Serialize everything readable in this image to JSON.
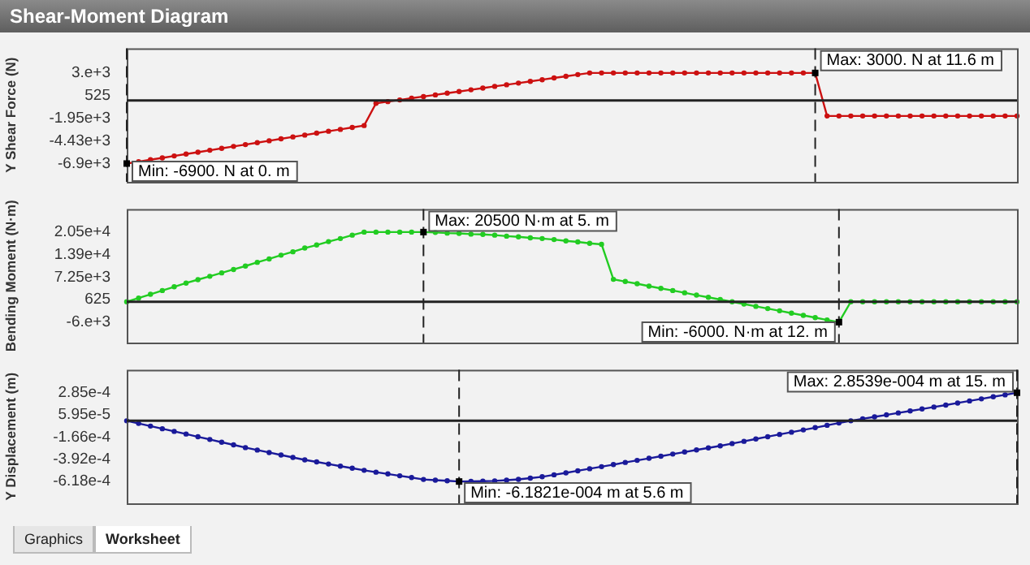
{
  "chart_data": [
    {
      "type": "line",
      "title": "Shear-Moment Diagram",
      "ylabel": "Y Shear Force (N)",
      "marker": "circle",
      "tick_labels": "y",
      "ylim": [
        -8900,
        5700
      ],
      "yticks": [
        {
          "value": -6900,
          "label": "-6.9e+3"
        },
        {
          "value": -4425,
          "label": "-4.43e+3"
        },
        {
          "value": -1950,
          "label": "-1.95e+3"
        },
        525,
        {
          "value": 3000,
          "label": "3.e+3"
        }
      ],
      "categories": [
        null,
        null,
        null,
        null,
        null,
        null,
        null,
        null,
        null,
        null,
        null,
        null,
        null,
        null,
        null,
        null,
        null,
        null,
        null,
        null,
        null,
        null,
        null,
        null,
        null,
        null,
        null,
        null,
        null,
        null,
        null,
        null,
        null,
        null,
        null,
        null,
        null,
        null,
        null,
        null,
        null,
        null,
        null,
        null,
        null,
        null,
        null,
        null,
        null,
        null,
        null,
        null,
        null,
        null,
        null,
        null,
        null,
        null,
        null,
        null,
        null,
        null,
        null,
        null,
        null,
        null,
        null,
        null,
        null,
        null,
        null,
        null,
        null,
        null,
        null,
        null
      ],
      "series": [
        {
          "color": "#cc1111",
          "values": [
            -6900,
            -6690,
            -6480,
            -6280,
            -6070,
            -5860,
            -5660,
            -5450,
            -5240,
            -5030,
            -4830,
            -4620,
            -4410,
            -4200,
            -3990,
            -3790,
            -3580,
            -3370,
            -3170,
            -2960,
            -2750,
            -320,
            -130,
            50,
            240,
            420,
            600,
            790,
            970,
            1160,
            1340,
            1530,
            1710,
            1890,
            2080,
            2260,
            2450,
            2630,
            2820,
            3000,
            3000,
            3000,
            3000,
            3000,
            3000,
            3000,
            3000,
            3000,
            3000,
            3000,
            3000,
            3000,
            3000,
            3000,
            3000,
            3000,
            3000,
            3000,
            3000,
            -1700,
            -1700,
            -1700,
            -1700,
            -1700,
            -1700,
            -1700,
            -1700,
            -1700,
            -1700,
            -1700,
            -1700,
            -1700,
            -1700,
            -1700,
            -1700,
            -1700
          ]
        }
      ],
      "ref_lines": [
        {
          "axis": "y",
          "value": 0
        }
      ],
      "annotations": [
        "Min: -6900. N at 0. m",
        "Max: 3000. N at 11.6 m"
      ]
    },
    {
      "type": "line",
      "ylabel": "Bending Moment (N·m)",
      "marker": "circle",
      "tick_labels": "y",
      "ylim": [
        -12000,
        27300
      ],
      "yticks": [
        {
          "value": -6000,
          "label": "-6.e+3"
        },
        625,
        {
          "value": 7250,
          "label": "7.25e+3"
        },
        {
          "value": 13875,
          "label": "1.39e+4"
        },
        {
          "value": 20500,
          "label": "2.05e+4"
        }
      ],
      "categories": [
        null,
        null,
        null,
        null,
        null,
        null,
        null,
        null,
        null,
        null,
        null,
        null,
        null,
        null,
        null,
        null,
        null,
        null,
        null,
        null,
        null,
        null,
        null,
        null,
        null,
        null,
        null,
        null,
        null,
        null,
        null,
        null,
        null,
        null,
        null,
        null,
        null,
        null,
        null,
        null,
        null,
        null,
        null,
        null,
        null,
        null,
        null,
        null,
        null,
        null,
        null,
        null,
        null,
        null,
        null,
        null,
        null,
        null,
        null,
        null,
        null,
        null,
        null,
        null,
        null,
        null,
        null,
        null,
        null,
        null,
        null,
        null,
        null,
        null,
        null,
        null
      ],
      "series": [
        {
          "color": "#22cc22",
          "values": [
            0,
            1100,
            2200,
            3300,
            4400,
            5500,
            6500,
            7500,
            8500,
            9500,
            10500,
            11600,
            12600,
            13700,
            14700,
            15800,
            16700,
            17700,
            18600,
            19600,
            20500,
            20500,
            20500,
            20500,
            20500,
            20500,
            20400,
            20200,
            20100,
            19900,
            19800,
            19600,
            19300,
            19100,
            18800,
            18600,
            18300,
            17900,
            17600,
            17200,
            16900,
            6600,
            5950,
            5300,
            4600,
            3950,
            3300,
            2650,
            1950,
            1300,
            650,
            0,
            -650,
            -1350,
            -2000,
            -2650,
            -3350,
            -4000,
            -4650,
            -5350,
            -6000,
            0,
            0,
            0,
            0,
            0,
            0,
            0,
            0,
            0,
            0,
            0,
            0,
            0,
            0,
            0
          ]
        }
      ],
      "ref_lines": [
        {
          "axis": "y",
          "value": 0
        }
      ],
      "annotations": [
        "Max: 20500 N·m at 5. m",
        "Min: -6000. N·m at 12. m"
      ]
    },
    {
      "type": "line",
      "ylabel": "Y Displacement (m)",
      "marker": "circle",
      "tick_labels": "y",
      "ylim": [
        -0.00084,
        0.00052
      ],
      "yticks": [
        {
          "value": -0.00061821,
          "label": "-6.18e-4"
        },
        {
          "value": -0.00039231,
          "label": "-3.92e-4"
        },
        {
          "value": -0.00016641,
          "label": "-1.66e-4"
        },
        {
          "value": 5.95e-05,
          "label": "5.95e-5"
        },
        {
          "value": 0.00028539,
          "label": "2.85e-4"
        }
      ],
      "categories": [
        null,
        null,
        null,
        null,
        null,
        null,
        null,
        null,
        null,
        null,
        null,
        null,
        null,
        null,
        null,
        null,
        null,
        null,
        null,
        null,
        null,
        null,
        null,
        null,
        null,
        null,
        null,
        null,
        null,
        null,
        null,
        null,
        null,
        null,
        null,
        null,
        null,
        null,
        null,
        null,
        null,
        null,
        null,
        null,
        null,
        null,
        null,
        null,
        null,
        null,
        null,
        null,
        null,
        null,
        null,
        null,
        null,
        null,
        null,
        null,
        null,
        null,
        null,
        null,
        null,
        null,
        null,
        null,
        null,
        null,
        null,
        null,
        null,
        null,
        null,
        null
      ],
      "series": [
        {
          "color": "#1a1a9a",
          "values": [
            0,
            -2.7e-05,
            -5.4e-05,
            -8.1e-05,
            -0.000108,
            -0.000135,
            -0.000163,
            -0.00019,
            -0.000218,
            -0.000245,
            -0.000273,
            -0.000298,
            -0.000323,
            -0.000348,
            -0.000373,
            -0.000398,
            -0.000419,
            -0.00044,
            -0.000462,
            -0.000483,
            -0.000504,
            -0.000523,
            -0.000541,
            -0.00056,
            -0.000578,
            -0.000597,
            -0.000604,
            -0.000611,
            -0.00061821,
            -0.000617,
            -0.000615,
            -0.000612,
            -0.000604,
            -0.000596,
            -0.000584,
            -0.00057,
            -0.00055,
            -0.00053,
            -0.000509,
            -0.000488,
            -0.000467,
            -0.000446,
            -0.000424,
            -0.000403,
            -0.000382,
            -0.000361,
            -0.000339,
            -0.000318,
            -0.000297,
            -0.000276,
            -0.000255,
            -0.000232,
            -0.000209,
            -0.000185,
            -0.000162,
            -0.000139,
            -0.000116,
            -9.3e-05,
            -7e-05,
            -4.6e-05,
            -2.3e-05,
            0,
            2e-05,
            4e-05,
            6e-05,
            8e-05,
            0.0001,
            0.00012,
            0.00014,
            0.00016,
            0.000181,
            0.000202,
            0.000223,
            0.000244,
            0.000264,
            0.00028539
          ]
        }
      ],
      "ref_lines": [
        {
          "axis": "y",
          "value": 0
        }
      ],
      "annotations": [
        "Max: 2.8539e-004 m at 15. m",
        "Min: -6.1821e-004 m at 5.6 m",
        "Graphics",
        "Worksheet"
      ]
    }
  ]
}
